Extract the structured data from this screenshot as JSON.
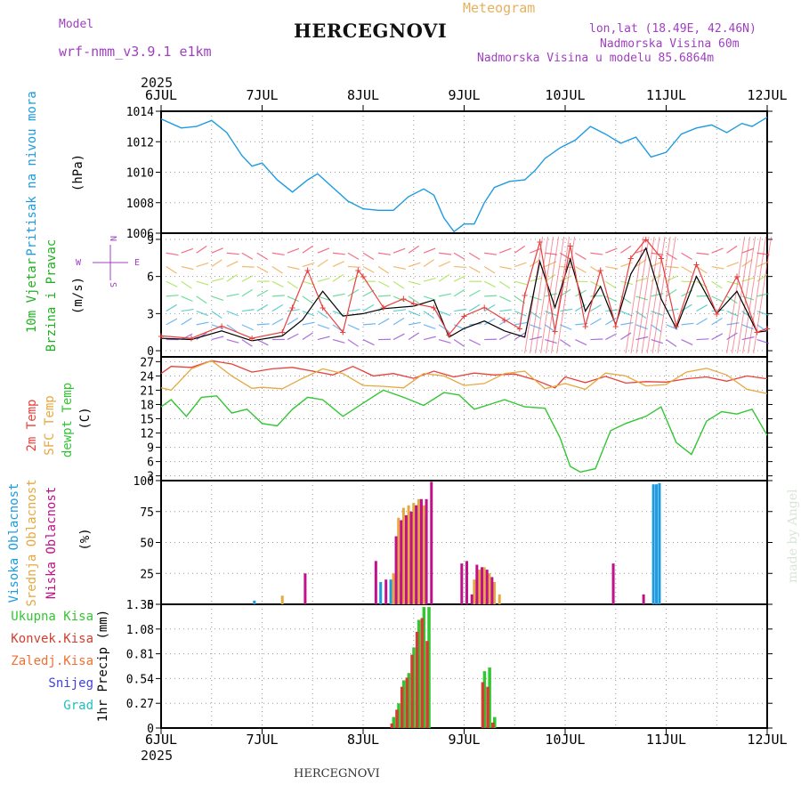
{
  "header": {
    "title": "HERCEGNOVI",
    "meteogram_label": "Meteogram",
    "model_label": "Model",
    "model_name": "wrf-nmm_v3.9.1 e1km",
    "lonlat": "lon,lat (18.49E, 42.46N)",
    "elevation": "Nadmorska Visina 60m",
    "model_elevation": "Nadmorska Visina u modelu 85.6864m",
    "year": "2025",
    "bottom_title": "HERCEGNOVI",
    "watermark": "made by Angel"
  },
  "colors": {
    "pressure": "#1e9be0",
    "temp2m": "#e8403a",
    "sfc": "#e6a840",
    "dew": "#33c633",
    "wind_speed": "#000000",
    "gust": "#e84040",
    "high_cloud": "#1e9be0",
    "mid_cloud": "#e6a840",
    "low_cloud": "#c0108a",
    "precip_total": "#33c633",
    "precip_conv": "#d04030",
    "snow": "#4040e0",
    "hail": "#20c0c0",
    "purple_text": "#a040c0",
    "orange_text": "#e6b060"
  },
  "chart_data": [
    {
      "type": "line",
      "panel": "pressure",
      "ylabel": "Pritisak na nivou mora",
      "unit": "(hPa)",
      "ylim": [
        1006,
        1014
      ],
      "yticks": [
        1006,
        1008,
        1010,
        1012,
        1014
      ],
      "xticks": [
        "6JUL",
        "7JUL",
        "8JUL",
        "9JUL",
        "10JUL",
        "11JUL",
        "12JUL"
      ],
      "grid": true,
      "series": [
        {
          "x": [
            0,
            0.1,
            0.2,
            0.35,
            0.5,
            0.65,
            0.8,
            0.9,
            1.0,
            1.15,
            1.3,
            1.45,
            1.55,
            1.7,
            1.85,
            2.0,
            2.15,
            2.3,
            2.45,
            2.6,
            2.7,
            2.8,
            2.9,
            3.0,
            3.1,
            3.2,
            3.3,
            3.45,
            3.6,
            3.7,
            3.8,
            3.95,
            4.1,
            4.25,
            4.4,
            4.55,
            4.7,
            4.85,
            5.0,
            5.15,
            5.3,
            5.45,
            5.6,
            5.75,
            5.85,
            6.0
          ],
          "y": [
            1013.5,
            1013.2,
            1012.9,
            1013.0,
            1013.4,
            1012.6,
            1011.1,
            1010.4,
            1010.6,
            1009.5,
            1008.7,
            1009.5,
            1009.9,
            1009.0,
            1008.1,
            1007.6,
            1007.5,
            1007.5,
            1008.4,
            1008.9,
            1008.5,
            1007.0,
            1006.1,
            1006.6,
            1006.6,
            1008.0,
            1009.0,
            1009.4,
            1009.5,
            1010.1,
            1010.9,
            1011.6,
            1012.1,
            1013.0,
            1012.5,
            1011.9,
            1012.3,
            1011.0,
            1011.3,
            1012.5,
            1012.9,
            1013.1,
            1012.6,
            1013.2,
            1013.0,
            1013.6
          ]
        }
      ]
    },
    {
      "type": "line",
      "panel": "wind",
      "ylabel": "10m Vjetar Brzina i Pravac",
      "unit": "(m/s)",
      "ylim": [
        -0.5,
        9.5
      ],
      "yticks": [
        0,
        3,
        6,
        9
      ],
      "grid": true,
      "compass": {
        "n": "N",
        "e": "E",
        "w": "W",
        "s": "S"
      },
      "series": [
        {
          "name": "speed",
          "x": [
            0,
            0.3,
            0.6,
            0.9,
            1.2,
            1.4,
            1.6,
            1.8,
            2.0,
            2.2,
            2.5,
            2.7,
            2.85,
            3.0,
            3.2,
            3.4,
            3.6,
            3.75,
            3.9,
            4.05,
            4.2,
            4.35,
            4.5,
            4.65,
            4.8,
            4.95,
            5.1,
            5.3,
            5.5,
            5.7,
            5.9,
            6.0
          ],
          "y": [
            1.0,
            0.9,
            1.6,
            0.8,
            1.2,
            2.5,
            4.8,
            2.8,
            3.0,
            3.4,
            3.6,
            4.1,
            1.1,
            1.8,
            2.4,
            1.6,
            1.1,
            7.2,
            3.5,
            7.4,
            3.2,
            5.2,
            2.1,
            6.2,
            8.3,
            4.2,
            1.8,
            6.0,
            3.0,
            4.8,
            1.5,
            1.6
          ]
        },
        {
          "name": "gust",
          "x": [
            0,
            0.3,
            0.6,
            0.9,
            1.2,
            1.3,
            1.45,
            1.6,
            1.8,
            1.95,
            2.0,
            2.2,
            2.4,
            2.5,
            2.7,
            2.85,
            3.0,
            3.2,
            3.4,
            3.55,
            3.6,
            3.75,
            3.9,
            4.05,
            4.2,
            4.35,
            4.5,
            4.65,
            4.8,
            4.95,
            5.1,
            5.3,
            5.5,
            5.7,
            5.9,
            6.0
          ],
          "y": [
            1.2,
            1.0,
            2.0,
            1.0,
            1.5,
            3.5,
            6.5,
            3.5,
            1.5,
            6.5,
            6.0,
            3.5,
            4.2,
            3.8,
            3.5,
            1.3,
            2.8,
            3.5,
            2.5,
            1.8,
            4.5,
            8.8,
            1.6,
            8.5,
            2.0,
            6.5,
            2.0,
            7.5,
            9.0,
            7.5,
            2.0,
            7.0,
            3.0,
            6.0,
            1.5,
            1.8
          ]
        }
      ],
      "barb_rows": [
        {
          "level": 0.9,
          "color": "#9040d0"
        },
        {
          "level": 2.1,
          "color": "#40a0f0"
        },
        {
          "level": 3.2,
          "color": "#30c0c0"
        },
        {
          "level": 4.4,
          "color": "#40d080"
        },
        {
          "level": 5.6,
          "color": "#a0e040"
        },
        {
          "level": 6.8,
          "color": "#f0a040"
        },
        {
          "level": 7.9,
          "color": "#f04060"
        }
      ]
    },
    {
      "type": "line",
      "panel": "temperature",
      "ylabel": [
        "2m Temp",
        "SFC Temp",
        "dewpt Temp"
      ],
      "unit": "(C)",
      "ylim": [
        2,
        28
      ],
      "yticks": [
        3,
        6,
        9,
        12,
        15,
        18,
        21,
        24,
        27
      ],
      "grid": true,
      "series": [
        {
          "name": "2m Temp",
          "x": [
            0,
            0.1,
            0.3,
            0.5,
            0.7,
            0.9,
            1.1,
            1.3,
            1.5,
            1.7,
            1.9,
            2.1,
            2.3,
            2.5,
            2.7,
            2.9,
            3.1,
            3.3,
            3.5,
            3.7,
            3.9,
            4.0,
            4.2,
            4.4,
            4.6,
            4.8,
            5.0,
            5.2,
            5.4,
            5.6,
            5.8,
            6.0
          ],
          "y": [
            24.5,
            26.0,
            25.8,
            27.2,
            26.5,
            24.8,
            25.5,
            25.8,
            25.0,
            24.2,
            26.0,
            24.0,
            24.5,
            23.5,
            25.0,
            23.8,
            24.6,
            24.2,
            24.4,
            23.2,
            21.5,
            23.8,
            22.6,
            23.9,
            22.5,
            22.8,
            22.7,
            23.4,
            23.8,
            22.9,
            24.0,
            23.4
          ]
        },
        {
          "name": "SFC Temp",
          "x": [
            0,
            0.1,
            0.3,
            0.5,
            0.7,
            0.9,
            1.0,
            1.2,
            1.4,
            1.6,
            1.8,
            2.0,
            2.2,
            2.4,
            2.6,
            2.8,
            3.0,
            3.2,
            3.4,
            3.6,
            3.8,
            4.0,
            4.2,
            4.4,
            4.6,
            4.8,
            5.0,
            5.2,
            5.4,
            5.6,
            5.8,
            6.0
          ],
          "y": [
            21.5,
            21.0,
            25.5,
            27.2,
            24.0,
            21.4,
            21.6,
            21.3,
            23.5,
            25.5,
            24.5,
            22.0,
            21.8,
            21.5,
            24.5,
            24.0,
            22.0,
            22.4,
            24.5,
            25.0,
            21.3,
            22.4,
            21.2,
            24.6,
            24.0,
            21.9,
            22.2,
            24.8,
            25.6,
            24.2,
            21.2,
            20.3
          ]
        },
        {
          "name": "dewpt Temp",
          "x": [
            0,
            0.1,
            0.25,
            0.4,
            0.55,
            0.7,
            0.85,
            1.0,
            1.15,
            1.3,
            1.45,
            1.6,
            1.8,
            2.0,
            2.2,
            2.4,
            2.6,
            2.8,
            2.95,
            3.1,
            3.25,
            3.4,
            3.6,
            3.8,
            3.95,
            4.05,
            4.15,
            4.3,
            4.45,
            4.6,
            4.8,
            4.95,
            5.1,
            5.25,
            5.4,
            5.55,
            5.7,
            5.85,
            6.0
          ],
          "y": [
            17.5,
            19.0,
            15.5,
            19.5,
            19.8,
            16.2,
            17.0,
            14.0,
            13.5,
            17.0,
            19.5,
            19.0,
            15.5,
            18.3,
            21.0,
            19.5,
            17.8,
            20.5,
            20.0,
            17.0,
            18.0,
            19.0,
            17.5,
            17.2,
            11.0,
            5.0,
            3.8,
            4.5,
            12.5,
            14.0,
            15.5,
            17.5,
            10.0,
            7.5,
            14.5,
            16.5,
            16.0,
            17.0,
            11.5
          ]
        }
      ]
    },
    {
      "type": "bar",
      "panel": "cloud",
      "ylabel": [
        "Visoka Oblacnost",
        "Srednja Oblacnost",
        "Niska Oblacnost"
      ],
      "unit": "(%)",
      "ylim": [
        0,
        100
      ],
      "yticks": [
        0,
        25,
        50,
        75,
        100
      ],
      "grid": true,
      "series": [
        {
          "name": "Visoka Oblacnost",
          "x": [
            0.95,
            2.2,
            2.3,
            2.4,
            2.5,
            2.55,
            2.6,
            2.65,
            4.9,
            4.93,
            4.96
          ],
          "y": [
            3,
            18,
            20,
            25,
            35,
            80,
            85,
            70,
            97,
            97,
            98
          ]
        },
        {
          "name": "Srednja Oblacnost",
          "x": [
            1.2,
            2.3,
            2.35,
            2.4,
            2.45,
            2.5,
            2.55,
            2.6,
            3.1,
            3.15,
            3.2,
            3.25,
            3.3,
            3.35
          ],
          "y": [
            7,
            25,
            70,
            78,
            80,
            82,
            85,
            80,
            20,
            28,
            30,
            25,
            18,
            8
          ]
        },
        {
          "name": "Niska Oblacnost",
          "x": [
            1.4,
            2.1,
            2.2,
            2.3,
            2.35,
            2.4,
            2.45,
            2.5,
            2.55,
            2.6,
            2.65,
            2.95,
            3.0,
            3.05,
            3.1,
            3.15,
            3.2,
            3.25,
            4.45,
            4.75
          ],
          "y": [
            25,
            35,
            20,
            55,
            68,
            72,
            75,
            80,
            85,
            85,
            99,
            33,
            35,
            8,
            32,
            30,
            28,
            22,
            33,
            8
          ]
        }
      ]
    },
    {
      "type": "bar",
      "panel": "precip",
      "ylabel": "1hr Precip",
      "unit": "(mm)",
      "ylim": [
        0,
        1.35
      ],
      "yticks": [
        0,
        0.27,
        0.54,
        0.81,
        1.08,
        1.35
      ],
      "grid": true,
      "legend": [
        "Ukupna Kisa",
        "Konvek.Kisa",
        "Zaledj.Kisa",
        "Snijeg",
        "Grad"
      ],
      "x": [
        2.3,
        2.35,
        2.4,
        2.45,
        2.5,
        2.55,
        2.6,
        2.65,
        3.2,
        3.25,
        3.3
      ],
      "series": [
        {
          "name": "Ukupna Kisa",
          "values": [
            0.12,
            0.27,
            0.52,
            0.6,
            0.88,
            1.18,
            1.32,
            1.32,
            0.62,
            0.66,
            0.12
          ]
        },
        {
          "name": "Konvek.Kisa",
          "values": [
            0.05,
            0.2,
            0.45,
            0.55,
            0.8,
            1.05,
            1.2,
            0.95,
            0.5,
            0.45,
            0.06
          ]
        }
      ]
    }
  ]
}
